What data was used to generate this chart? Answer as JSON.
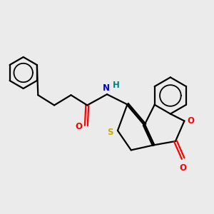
{
  "background_color": "#ebebeb",
  "bond_color": "#000000",
  "atom_colors": {
    "O": "#ff0000",
    "N": "#0000cc",
    "H": "#008080",
    "S": "#ccaa00"
  },
  "figsize": [
    3.0,
    3.0
  ],
  "dpi": 100,
  "bond_lw": 1.6,
  "aromatic_lw": 1.3
}
